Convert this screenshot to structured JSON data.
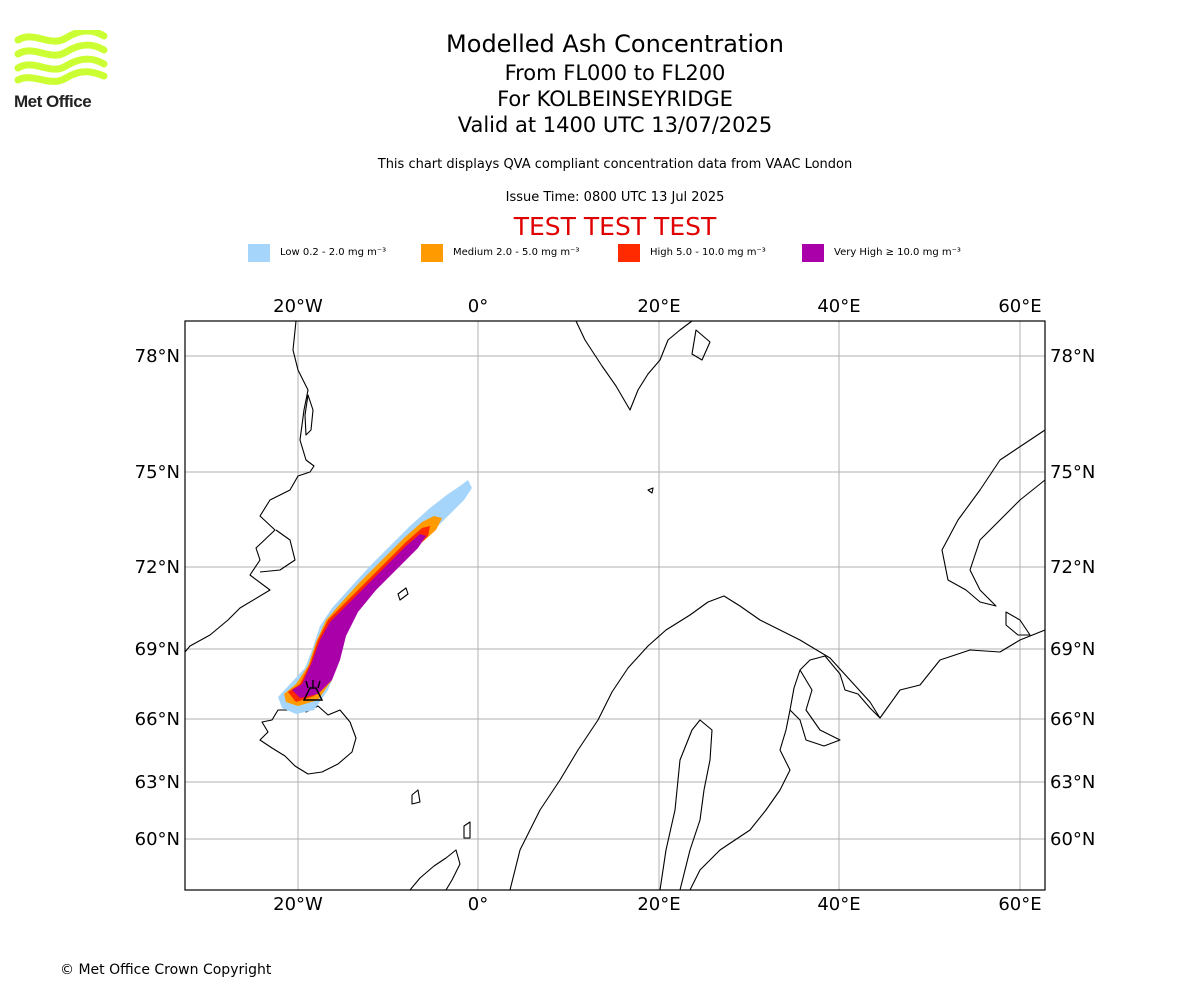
{
  "logo": {
    "text": "Met Office",
    "color": "#ccff33"
  },
  "title": {
    "line1": "Modelled Ash Concentration",
    "line2": "From FL000 to FL200",
    "line3": "For KOLBEINSEYRIDGE",
    "line4": "Valid at 1400 UTC 13/07/2025"
  },
  "subtitle": "This chart displays QVA compliant concentration data from VAAC London",
  "issue_time": "Issue Time: 0800 UTC 13 Jul 2025",
  "test_banner": "TEST TEST TEST",
  "legend": [
    {
      "label": "Low 0.2 - 2.0 mg m⁻³",
      "color": "#a6d5fb"
    },
    {
      "label": "Medium 2.0 - 5.0 mg m⁻³",
      "color": "#ff9a00"
    },
    {
      "label": "High 5.0 - 10.0 mg m⁻³",
      "color": "#ff2a00"
    },
    {
      "label": "Very High ≥ 10.0 mg m⁻³",
      "color": "#aa00aa"
    }
  ],
  "map": {
    "lon_ticks": [
      "20°W",
      "0°",
      "20°E",
      "40°E",
      "60°E"
    ],
    "lat_ticks": [
      "78°N",
      "75°N",
      "72°N",
      "69°N",
      "66°N",
      "63°N",
      "60°N"
    ],
    "grid": true,
    "source_symbol": "volcano-icon",
    "volcano_location": {
      "lat": 66.9,
      "lon": -18.3
    }
  },
  "copyright": "© Met Office Crown Copyright"
}
